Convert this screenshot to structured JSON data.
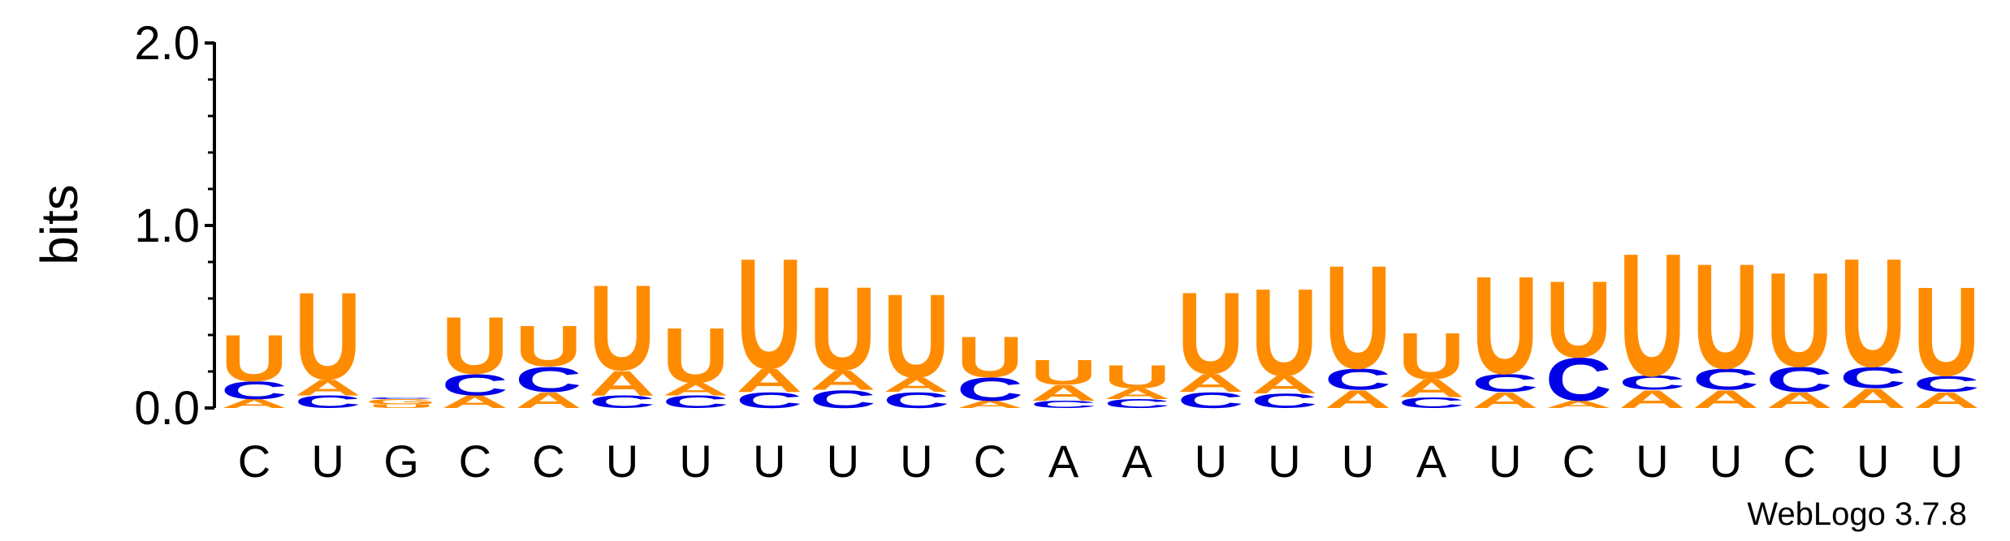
{
  "chart_data": {
    "type": "sequence-logo",
    "ylabel": "bits",
    "ylim": [
      0,
      2.0
    ],
    "yticks": [
      "0.0",
      "1.0",
      "2.0"
    ],
    "credit": "WebLogo 3.7.8",
    "colors": {
      "U": "#ff8c00",
      "A": "#ff8c00",
      "C": "#0000e6",
      "G": "#ff8c00"
    },
    "positions": [
      {
        "label": "C",
        "stack": [
          [
            "A",
            0.05
          ],
          [
            "C",
            0.1
          ],
          [
            "U",
            0.26
          ]
        ]
      },
      {
        "label": "U",
        "stack": [
          [
            "C",
            0.07
          ],
          [
            "A",
            0.09
          ],
          [
            "U",
            0.49
          ]
        ]
      },
      {
        "label": "G",
        "stack": [
          [
            "U",
            0.02
          ],
          [
            "G",
            0.03
          ],
          [
            "C",
            0.01
          ]
        ]
      },
      {
        "label": "C",
        "stack": [
          [
            "A",
            0.07
          ],
          [
            "C",
            0.12
          ],
          [
            "U",
            0.32
          ]
        ]
      },
      {
        "label": "C",
        "stack": [
          [
            "A",
            0.09
          ],
          [
            "C",
            0.14
          ],
          [
            "U",
            0.23
          ]
        ]
      },
      {
        "label": "U",
        "stack": [
          [
            "C",
            0.07
          ],
          [
            "A",
            0.14
          ],
          [
            "U",
            0.48
          ]
        ]
      },
      {
        "label": "U",
        "stack": [
          [
            "C",
            0.07
          ],
          [
            "A",
            0.07
          ],
          [
            "U",
            0.31
          ]
        ]
      },
      {
        "label": "U",
        "stack": [
          [
            "C",
            0.09
          ],
          [
            "A",
            0.13
          ],
          [
            "U",
            0.62
          ]
        ]
      },
      {
        "label": "U",
        "stack": [
          [
            "C",
            0.1
          ],
          [
            "A",
            0.11
          ],
          [
            "U",
            0.47
          ]
        ]
      },
      {
        "label": "U",
        "stack": [
          [
            "C",
            0.09
          ],
          [
            "A",
            0.08
          ],
          [
            "U",
            0.47
          ]
        ]
      },
      {
        "label": "C",
        "stack": [
          [
            "A",
            0.04
          ],
          [
            "C",
            0.13
          ],
          [
            "U",
            0.23
          ]
        ]
      },
      {
        "label": "A",
        "stack": [
          [
            "C",
            0.04
          ],
          [
            "A",
            0.09
          ],
          [
            "U",
            0.14
          ]
        ]
      },
      {
        "label": "A",
        "stack": [
          [
            "C",
            0.05
          ],
          [
            "A",
            0.06
          ],
          [
            "U",
            0.13
          ]
        ]
      },
      {
        "label": "U",
        "stack": [
          [
            "C",
            0.09
          ],
          [
            "A",
            0.1
          ],
          [
            "U",
            0.46
          ]
        ]
      },
      {
        "label": "U",
        "stack": [
          [
            "C",
            0.08
          ],
          [
            "A",
            0.1
          ],
          [
            "U",
            0.49
          ]
        ]
      },
      {
        "label": "U",
        "stack": [
          [
            "A",
            0.1
          ],
          [
            "C",
            0.12
          ],
          [
            "U",
            0.58
          ]
        ]
      },
      {
        "label": "A",
        "stack": [
          [
            "C",
            0.06
          ],
          [
            "A",
            0.1
          ],
          [
            "U",
            0.26
          ]
        ]
      },
      {
        "label": "U",
        "stack": [
          [
            "A",
            0.09
          ],
          [
            "C",
            0.1
          ],
          [
            "U",
            0.55
          ]
        ]
      },
      {
        "label": "C",
        "stack": [
          [
            "A",
            0.04
          ],
          [
            "C",
            0.24
          ],
          [
            "U",
            0.43
          ]
        ]
      },
      {
        "label": "U",
        "stack": [
          [
            "A",
            0.1
          ],
          [
            "C",
            0.08
          ],
          [
            "U",
            0.69
          ]
        ]
      },
      {
        "label": "U",
        "stack": [
          [
            "A",
            0.1
          ],
          [
            "C",
            0.12
          ],
          [
            "U",
            0.59
          ]
        ]
      },
      {
        "label": "C",
        "stack": [
          [
            "A",
            0.09
          ],
          [
            "C",
            0.14
          ],
          [
            "U",
            0.53
          ]
        ]
      },
      {
        "label": "U",
        "stack": [
          [
            "A",
            0.11
          ],
          [
            "C",
            0.12
          ],
          [
            "U",
            0.61
          ]
        ]
      },
      {
        "label": "U",
        "stack": [
          [
            "A",
            0.09
          ],
          [
            "C",
            0.09
          ],
          [
            "U",
            0.5
          ]
        ]
      }
    ]
  }
}
